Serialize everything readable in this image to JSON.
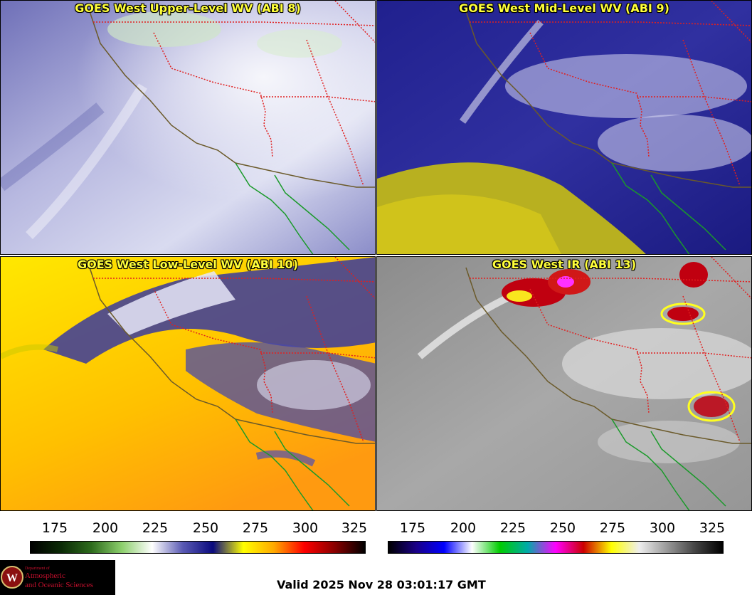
{
  "panels": [
    {
      "title": "GOES West Upper-Level WV (ABI 8)"
    },
    {
      "title": "GOES West Mid-Level WV (ABI 9)"
    },
    {
      "title": "GOES West Low-Level WV (ABI 10)"
    },
    {
      "title": "GOES West IR (ABI 13)"
    }
  ],
  "wv_scale": {
    "ticks": [
      "175",
      "200",
      "225",
      "250",
      "275",
      "300",
      "325"
    ],
    "colors": [
      "#000000",
      "#0b2a06",
      "#2d6b1c",
      "#8ccf6c",
      "#ffffff",
      "#5a5ab4",
      "#0a0a7e",
      "#ffff00",
      "#ffaa00",
      "#ff0000",
      "#8a0000",
      "#000000"
    ]
  },
  "ir_scale": {
    "ticks": [
      "175",
      "200",
      "225",
      "250",
      "275",
      "300",
      "325"
    ],
    "colors": [
      "#000000",
      "#1a0088",
      "#0000ff",
      "#ffffff",
      "#00cc00",
      "#00aaaa",
      "#ff00ff",
      "#cc0000",
      "#ffff00",
      "#eeeeee",
      "#999999",
      "#444444",
      "#000000"
    ]
  },
  "logo": {
    "line1": "Department of",
    "line2": "Atmospheric",
    "line3": "and Oceanic Sciences",
    "crest_letter": "W"
  },
  "valid_text": "Valid 2025 Nov 28 03:01:17 GMT"
}
